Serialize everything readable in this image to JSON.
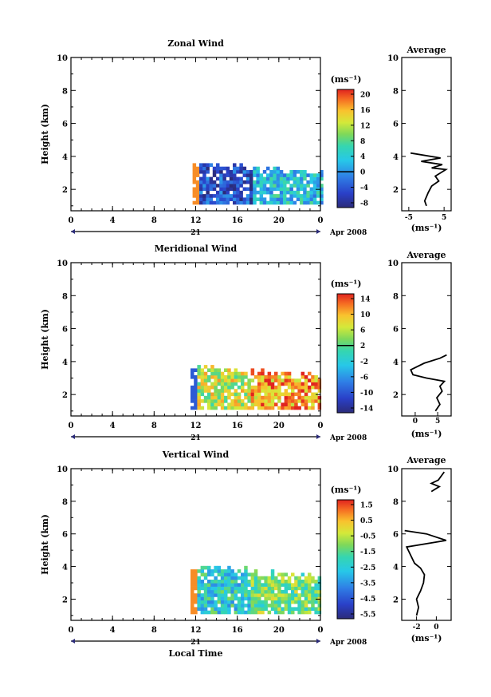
{
  "chart_data": [
    {
      "type": "heatmap",
      "title": "Zonal Wind",
      "ylabel": "Height (km)",
      "xlabel": "",
      "x_ticks": [
        "0",
        "4",
        "8",
        "12",
        "16",
        "20",
        "0"
      ],
      "y_ticks": [
        "2",
        "4",
        "6",
        "8",
        "10"
      ],
      "ylim": [
        0.7,
        10
      ],
      "xlim": [
        0,
        24
      ],
      "date_day": "21",
      "date_label": "Apr 2008",
      "colorbar": {
        "unit": "(ms⁻¹)",
        "ticks": [
          "20",
          "16",
          "12",
          "8",
          "4",
          "0",
          "-4",
          "-8"
        ],
        "range": [
          -10,
          22
        ],
        "contour_at": "0"
      },
      "data_extent": {
        "x_start": 11.7,
        "x_end": 24,
        "height_top": 3.5
      },
      "profile": {
        "title": "Average",
        "xlabel": "(ms⁻¹)",
        "x_ticks": [
          "-5",
          "5"
        ],
        "y_ticks": [
          "2",
          "4",
          "6",
          "8",
          "10"
        ],
        "xlim": [
          -7,
          7
        ],
        "ylim": [
          0.7,
          10
        ],
        "points": [
          [
            0,
            1.0
          ],
          [
            -0.5,
            1.3
          ],
          [
            0.5,
            1.8
          ],
          [
            1.5,
            2.2
          ],
          [
            3.5,
            2.5
          ],
          [
            2.5,
            2.8
          ],
          [
            5.5,
            3.2
          ],
          [
            1.5,
            3.3
          ],
          [
            4.5,
            3.5
          ],
          [
            -1.5,
            3.7
          ],
          [
            4.0,
            3.9
          ],
          [
            -4.5,
            4.2
          ]
        ]
      }
    },
    {
      "type": "heatmap",
      "title": "Meridional Wind",
      "ylabel": "Height (km)",
      "xlabel": "",
      "x_ticks": [
        "0",
        "4",
        "8",
        "12",
        "16",
        "20",
        "0"
      ],
      "y_ticks": [
        "2",
        "4",
        "6",
        "8",
        "10"
      ],
      "ylim": [
        0.7,
        10
      ],
      "xlim": [
        0,
        24
      ],
      "date_day": "21",
      "date_label": "Apr 2008",
      "colorbar": {
        "unit": "(ms⁻¹)",
        "ticks": [
          "14",
          "10",
          "6",
          "2",
          "-2",
          "-6",
          "-10",
          "-14"
        ],
        "range": [
          -16,
          16
        ],
        "contour_at": "2"
      },
      "data_extent": {
        "x_start": 11.5,
        "x_end": 24,
        "height_top": 3.6
      },
      "profile": {
        "title": "Average",
        "xlabel": "(ms⁻¹)",
        "x_ticks": [
          "0",
          "5"
        ],
        "y_ticks": [
          "2",
          "4",
          "6",
          "8",
          "10"
        ],
        "xlim": [
          -3,
          8
        ],
        "ylim": [
          0.7,
          10
        ],
        "points": [
          [
            4.5,
            1.0
          ],
          [
            5.5,
            1.4
          ],
          [
            4.8,
            1.8
          ],
          [
            6.0,
            2.2
          ],
          [
            5.5,
            2.5
          ],
          [
            6.5,
            2.8
          ],
          [
            2.5,
            3.0
          ],
          [
            -0.5,
            3.2
          ],
          [
            -1.0,
            3.5
          ],
          [
            2.0,
            3.9
          ],
          [
            5.5,
            4.2
          ],
          [
            7.0,
            4.4
          ]
        ]
      }
    },
    {
      "type": "heatmap",
      "title": "Vertical Wind",
      "ylabel": "Height (km)",
      "xlabel": "Local Time",
      "x_ticks": [
        "0",
        "4",
        "8",
        "12",
        "16",
        "20",
        "0"
      ],
      "y_ticks": [
        "2",
        "4",
        "6",
        "8",
        "10"
      ],
      "ylim": [
        0.7,
        10
      ],
      "xlim": [
        0,
        24
      ],
      "date_day": "21",
      "date_label": "Apr 2008",
      "colorbar": {
        "unit": "(ms⁻¹)",
        "ticks": [
          "1.5",
          "0.5",
          "-0.5",
          "-1.5",
          "-2.5",
          "-3.5",
          "-4.5",
          "-5.5"
        ],
        "range": [
          -6,
          2.2
        ],
        "contour_at": ""
      },
      "data_extent": {
        "x_start": 11.5,
        "x_end": 24,
        "height_top": 3.9
      },
      "profile": {
        "title": "Average",
        "xlabel": "(ms⁻¹)",
        "x_ticks": [
          "-2",
          "0"
        ],
        "y_ticks": [
          "2",
          "4",
          "6",
          "8",
          "10"
        ],
        "xlim": [
          -3.5,
          1.5
        ],
        "ylim": [
          0.7,
          10
        ],
        "points": [
          [
            -2.0,
            1.0
          ],
          [
            -1.8,
            1.5
          ],
          [
            -2.0,
            2.0
          ],
          [
            -1.6,
            2.5
          ],
          [
            -1.3,
            3.0
          ],
          [
            -1.2,
            3.5
          ],
          [
            -1.6,
            3.9
          ],
          [
            -2.2,
            4.2
          ],
          [
            -3.0,
            5.2
          ],
          [
            1.0,
            5.6
          ],
          [
            -1.0,
            6.0
          ],
          [
            -3.2,
            6.2
          ]
        ],
        "points_upper": [
          [
            -0.5,
            8.6
          ],
          [
            0.3,
            8.9
          ],
          [
            -0.5,
            9.1
          ],
          [
            0.2,
            9.3
          ],
          [
            0.8,
            9.8
          ]
        ]
      }
    }
  ]
}
